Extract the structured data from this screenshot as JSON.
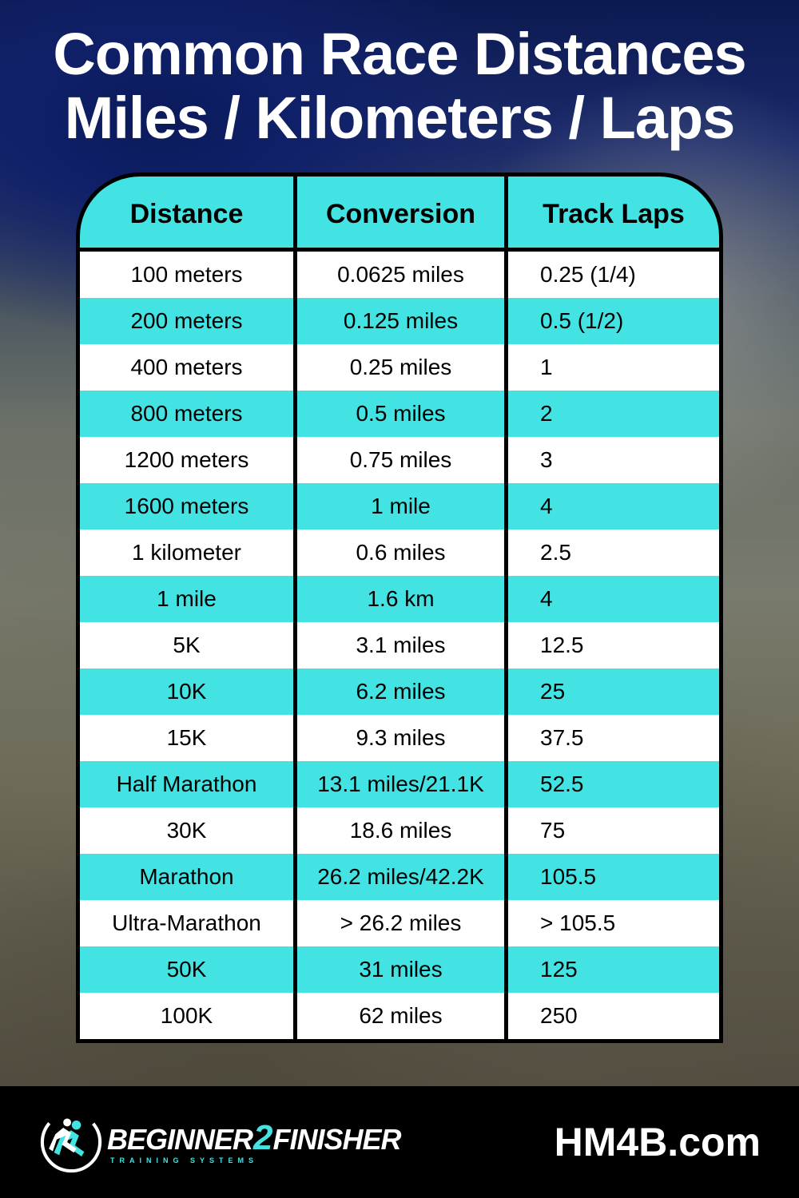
{
  "title_line1": "Common Race Distances",
  "title_line2": "Miles / Kilometers / Laps",
  "colors": {
    "accent": "#43e3e3",
    "row_alt": "#43e3e3",
    "row_white": "#ffffff",
    "border": "#000000",
    "title_text": "#ffffff",
    "footer_bg": "#000000"
  },
  "table": {
    "headers": [
      "Distance",
      "Conversion",
      "Track Laps"
    ],
    "rows": [
      [
        "100 meters",
        "0.0625 miles",
        "0.25 (1/4)"
      ],
      [
        "200 meters",
        "0.125 miles",
        "0.5 (1/2)"
      ],
      [
        "400 meters",
        "0.25 miles",
        "1"
      ],
      [
        "800 meters",
        "0.5 miles",
        "2"
      ],
      [
        "1200 meters",
        "0.75 miles",
        "3"
      ],
      [
        "1600 meters",
        "1 mile",
        "4"
      ],
      [
        "1 kilometer",
        "0.6 miles",
        "2.5"
      ],
      [
        "1 mile",
        "1.6 km",
        "4"
      ],
      [
        "5K",
        "3.1 miles",
        "12.5"
      ],
      [
        "10K",
        "6.2 miles",
        "25"
      ],
      [
        "15K",
        "9.3 miles",
        "37.5"
      ],
      [
        "Half Marathon",
        "13.1 miles/21.1K",
        "52.5"
      ],
      [
        "30K",
        "18.6 miles",
        "75"
      ],
      [
        "Marathon",
        "26.2 miles/42.2K",
        "105.5"
      ],
      [
        "Ultra-Marathon",
        "> 26.2 miles",
        "> 105.5"
      ],
      [
        "50K",
        "31 miles",
        "125"
      ],
      [
        "100K",
        "62 miles",
        "250"
      ]
    ],
    "column_widths_pct": [
      34,
      33,
      33
    ],
    "header_fontsize": 34,
    "cell_fontsize": 28,
    "border_width": 5,
    "header_radius": 80
  },
  "footer": {
    "logo_part1": "BEGINNER",
    "logo_part2": "2",
    "logo_part3": "FINISHER",
    "logo_sub": "TRAINING SYSTEMS",
    "site": "HM4B.com"
  }
}
